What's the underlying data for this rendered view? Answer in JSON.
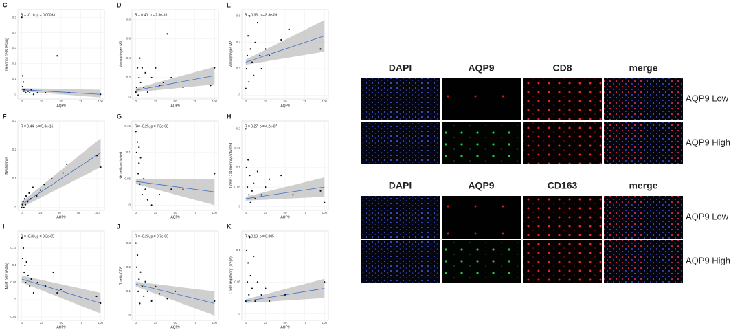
{
  "chart_data": [
    {
      "type": "scatter",
      "panel": "C",
      "annotation": "R = -0.16, p = 0.00093",
      "x_label": "AQP9",
      "y_label": "Dendritic cells resting",
      "color": "#111111",
      "fit_color": "#3a6fc4",
      "band_color": "#bfbfbf",
      "x": [
        0,
        1,
        2,
        3,
        5,
        8,
        10,
        15,
        20,
        45,
        60,
        100,
        2,
        4,
        1,
        12,
        30
      ],
      "y": [
        0.5,
        0.05,
        0.02,
        0.03,
        0.01,
        0.02,
        0.01,
        0,
        0.01,
        0.25,
        0.01,
        0,
        0.08,
        0.02,
        0.12,
        0.03,
        0.01
      ],
      "fit": {
        "x": [
          0,
          100
        ],
        "y": [
          0.03,
          0.0
        ],
        "lower": [
          0.02,
          -0.02
        ],
        "upper": [
          0.04,
          0.03
        ]
      },
      "xlim": [
        -5,
        105
      ],
      "xticks": [
        0,
        25,
        50,
        75,
        100
      ],
      "ylim": [
        -0.03,
        0.55
      ],
      "yticks": [
        0,
        0.1,
        0.2,
        0.3,
        0.4,
        0.5
      ]
    },
    {
      "type": "scatter",
      "panel": "D",
      "annotation": "R = 0.40, p = 2.3e-16",
      "x_label": "AQP9",
      "y_label": "Macrophages M0",
      "color": "#111111",
      "fit_color": "#3a6fc4",
      "band_color": "#bfbfbf",
      "x": [
        0,
        1,
        2,
        3,
        4,
        5,
        6,
        8,
        10,
        12,
        15,
        20,
        25,
        30,
        35,
        40,
        45,
        60,
        95,
        100
      ],
      "y": [
        0.05,
        0.1,
        0.3,
        0.02,
        0.2,
        0.4,
        0.15,
        0.3,
        0.1,
        0.25,
        0.05,
        0.2,
        0.3,
        0.12,
        0.15,
        0.65,
        0.2,
        0.1,
        0.12,
        0.3
      ],
      "fit": {
        "x": [
          0,
          100
        ],
        "y": [
          0.07,
          0.22
        ],
        "lower": [
          0.05,
          0.13
        ],
        "upper": [
          0.09,
          0.31
        ]
      },
      "xlim": [
        -5,
        105
      ],
      "xticks": [
        0,
        25,
        50,
        75,
        100
      ],
      "ylim": [
        -0.02,
        0.9
      ],
      "yticks": [
        0,
        0.2,
        0.4,
        0.6,
        0.8
      ]
    },
    {
      "type": "scatter",
      "panel": "E",
      "annotation": "R = 0.33, p = 8.8e-09",
      "x_label": "AQP9",
      "y_label": "Macrophages M2",
      "color": "#111111",
      "fit_color": "#3a6fc4",
      "band_color": "#bfbfbf",
      "x": [
        0,
        1,
        2,
        3,
        4,
        5,
        6,
        8,
        10,
        12,
        15,
        18,
        20,
        25,
        30,
        45,
        55,
        95
      ],
      "y": [
        0.05,
        0.2,
        0.3,
        0.45,
        0.1,
        0.6,
        0.35,
        0.25,
        0.15,
        0.4,
        0.55,
        0.3,
        0.2,
        0.35,
        0.3,
        0.42,
        0.5,
        0.35
      ],
      "fit": {
        "x": [
          0,
          100
        ],
        "y": [
          0.25,
          0.45
        ],
        "lower": [
          0.23,
          0.33
        ],
        "upper": [
          0.27,
          0.57
        ]
      },
      "xlim": [
        -5,
        105
      ],
      "xticks": [
        0,
        25,
        50,
        75,
        100
      ],
      "ylim": [
        -0.03,
        0.65
      ],
      "yticks": [
        0,
        0.2,
        0.4,
        0.6
      ]
    },
    {
      "type": "scatter",
      "panel": "F",
      "annotation": "R = 0.44, p = 5.3e-16",
      "x_label": "AQP9",
      "y_label": "Neutrophils",
      "color": "#111111",
      "fit_color": "#3a6fc4",
      "band_color": "#bfbfbf",
      "x": [
        0,
        1,
        2,
        3,
        4,
        5,
        6,
        8,
        10,
        12,
        15,
        20,
        25,
        30,
        40,
        55,
        60,
        100,
        105
      ],
      "y": [
        0.0,
        0.01,
        0.02,
        0.0,
        0.03,
        0.01,
        0.04,
        0.02,
        0.05,
        0.03,
        0.07,
        0.04,
        0.06,
        0.08,
        0.1,
        0.12,
        0.15,
        0.18,
        0.14
      ],
      "fit": {
        "x": [
          0,
          105
        ],
        "y": [
          0.01,
          0.19
        ],
        "lower": [
          0.0,
          0.14
        ],
        "upper": [
          0.02,
          0.24
        ]
      },
      "xlim": [
        -5,
        110
      ],
      "xticks": [
        0,
        25,
        50,
        75,
        100
      ],
      "ylim": [
        -0.01,
        0.3
      ],
      "yticks": [
        0,
        0.1,
        0.2,
        0.3
      ]
    },
    {
      "type": "scatter",
      "panel": "G",
      "annotation": "R = -0.25, p = 7.3e-08",
      "x_label": "AQP9",
      "y_label": "NK cells activated",
      "color": "#111111",
      "fit_color": "#3a6fc4",
      "band_color": "#bfbfbf",
      "x": [
        0,
        1,
        2,
        3,
        4,
        5,
        6,
        8,
        10,
        12,
        15,
        20,
        30,
        45,
        60,
        100,
        2,
        4
      ],
      "y": [
        0.14,
        0.1,
        0.12,
        0.06,
        0.08,
        0.04,
        0.09,
        0.02,
        0.05,
        0.03,
        0.01,
        0.0,
        0.02,
        0.03,
        0.03,
        0.06,
        0.15,
        0.11
      ],
      "fit": {
        "x": [
          0,
          100
        ],
        "y": [
          0.045,
          0.025
        ],
        "lower": [
          0.04,
          0.0
        ],
        "upper": [
          0.05,
          0.05
        ]
      },
      "xlim": [
        -5,
        105
      ],
      "xticks": [
        0,
        25,
        50,
        75,
        100
      ],
      "ylim": [
        -0.01,
        0.16
      ],
      "yticks": [
        0,
        0.05,
        0.1,
        0.15
      ]
    },
    {
      "type": "scatter",
      "panel": "H",
      "annotation": "R = 0.27, p = 4.2e-07",
      "x_label": "AQP9",
      "y_label": "T cells CD4 memory activated",
      "color": "#111111",
      "fit_color": "#3a6fc4",
      "band_color": "#bfbfbf",
      "x": [
        0,
        1,
        2,
        3,
        4,
        5,
        6,
        8,
        10,
        12,
        15,
        20,
        25,
        30,
        45,
        60,
        95,
        100
      ],
      "y": [
        0.2,
        0.1,
        0.05,
        0.12,
        0.03,
        0.08,
        0.01,
        0.04,
        0.06,
        0.02,
        0.09,
        0.03,
        0.05,
        0.07,
        0.08,
        0.03,
        0.04,
        0.01
      ],
      "fit": {
        "x": [
          0,
          100
        ],
        "y": [
          0.02,
          0.05
        ],
        "lower": [
          0.015,
          0.025
        ],
        "upper": [
          0.025,
          0.075
        ]
      },
      "xlim": [
        -5,
        105
      ],
      "xticks": [
        0,
        25,
        50,
        75,
        100
      ],
      "ylim": [
        -0.01,
        0.22
      ],
      "yticks": [
        0,
        0.05,
        0.1,
        0.15,
        0.2
      ]
    },
    {
      "type": "scatter",
      "panel": "I",
      "annotation": "R = -0.33, p = 3.3e-05",
      "x_label": "AQP9",
      "y_label": "Mast cells resting",
      "color": "#111111",
      "fit_color": "#3a6fc4",
      "band_color": "#bfbfbf",
      "x": [
        0,
        1,
        2,
        3,
        4,
        5,
        6,
        8,
        10,
        12,
        15,
        20,
        30,
        40,
        45,
        50,
        95,
        100
      ],
      "y": [
        0.18,
        0.12,
        0.15,
        0.08,
        0.1,
        0.05,
        0.11,
        0.07,
        0.04,
        0.06,
        0.02,
        0.05,
        0.04,
        0.08,
        0.02,
        0.03,
        0.01,
        -0.01
      ],
      "fit": {
        "x": [
          0,
          100
        ],
        "y": [
          0.06,
          -0.01
        ],
        "lower": [
          0.05,
          -0.04
        ],
        "upper": [
          0.07,
          0.02
        ]
      },
      "xlim": [
        -5,
        105
      ],
      "xticks": [
        0,
        25,
        50,
        75,
        100
      ],
      "ylim": [
        -0.06,
        0.2
      ],
      "yticks": [
        -0.05,
        0,
        0.05,
        0.1,
        0.15
      ]
    },
    {
      "type": "scatter",
      "panel": "J",
      "annotation": "R = -0.23, p = 9.7e-06",
      "x_label": "AQP9",
      "y_label": "T cells CD8",
      "color": "#111111",
      "fit_color": "#3a6fc4",
      "band_color": "#bfbfbf",
      "x": [
        0,
        1,
        2,
        3,
        4,
        5,
        6,
        8,
        10,
        12,
        15,
        20,
        25,
        30,
        40,
        50,
        100
      ],
      "y": [
        0.3,
        0.2,
        0.25,
        0.1,
        0.15,
        0.05,
        0.18,
        0.12,
        0.08,
        0.14,
        0.1,
        0.06,
        0.12,
        0.09,
        0.07,
        0.1,
        0.06
      ],
      "fit": {
        "x": [
          0,
          100
        ],
        "y": [
          0.13,
          0.05
        ],
        "lower": [
          0.12,
          0.0
        ],
        "upper": [
          0.14,
          0.1
        ]
      },
      "xlim": [
        -5,
        105
      ],
      "xticks": [
        0,
        25,
        50,
        75,
        100
      ],
      "ylim": [
        -0.02,
        0.35
      ],
      "yticks": [
        0,
        0.1,
        0.2,
        0.3
      ]
    },
    {
      "type": "scatter",
      "panel": "K",
      "annotation": "R = 0.13, p = 0.005",
      "x_label": "AQP9",
      "y_label": "T cells regulatory (Tregs)",
      "color": "#111111",
      "fit_color": "#3a6fc4",
      "band_color": "#bfbfbf",
      "x": [
        0,
        1,
        2,
        3,
        4,
        5,
        6,
        8,
        10,
        12,
        15,
        20,
        25,
        30,
        50,
        100
      ],
      "y": [
        0.02,
        0.1,
        0.05,
        0.08,
        0.03,
        0.12,
        0.06,
        0.04,
        0.09,
        0.02,
        0.05,
        0.03,
        0.04,
        0.02,
        0.03,
        0.05
      ],
      "fit": {
        "x": [
          0,
          100
        ],
        "y": [
          0.02,
          0.04
        ],
        "lower": [
          0.017,
          0.025
        ],
        "upper": [
          0.023,
          0.055
        ]
      },
      "xlim": [
        -5,
        105
      ],
      "xticks": [
        0,
        25,
        50,
        75,
        100
      ],
      "ylim": [
        -0.01,
        0.13
      ],
      "yticks": [
        0,
        0.05,
        0.1
      ]
    }
  ],
  "image_panels": [
    {
      "columns": [
        "DAPI",
        "AQP9",
        "CD8",
        "merge"
      ],
      "rows": [
        "AQP9 Low",
        "AQP9 High"
      ]
    },
    {
      "columns": [
        "DAPI",
        "AQP9",
        "CD163",
        "merge"
      ],
      "rows": [
        "AQP9 Low",
        "AQP9 High"
      ]
    }
  ]
}
